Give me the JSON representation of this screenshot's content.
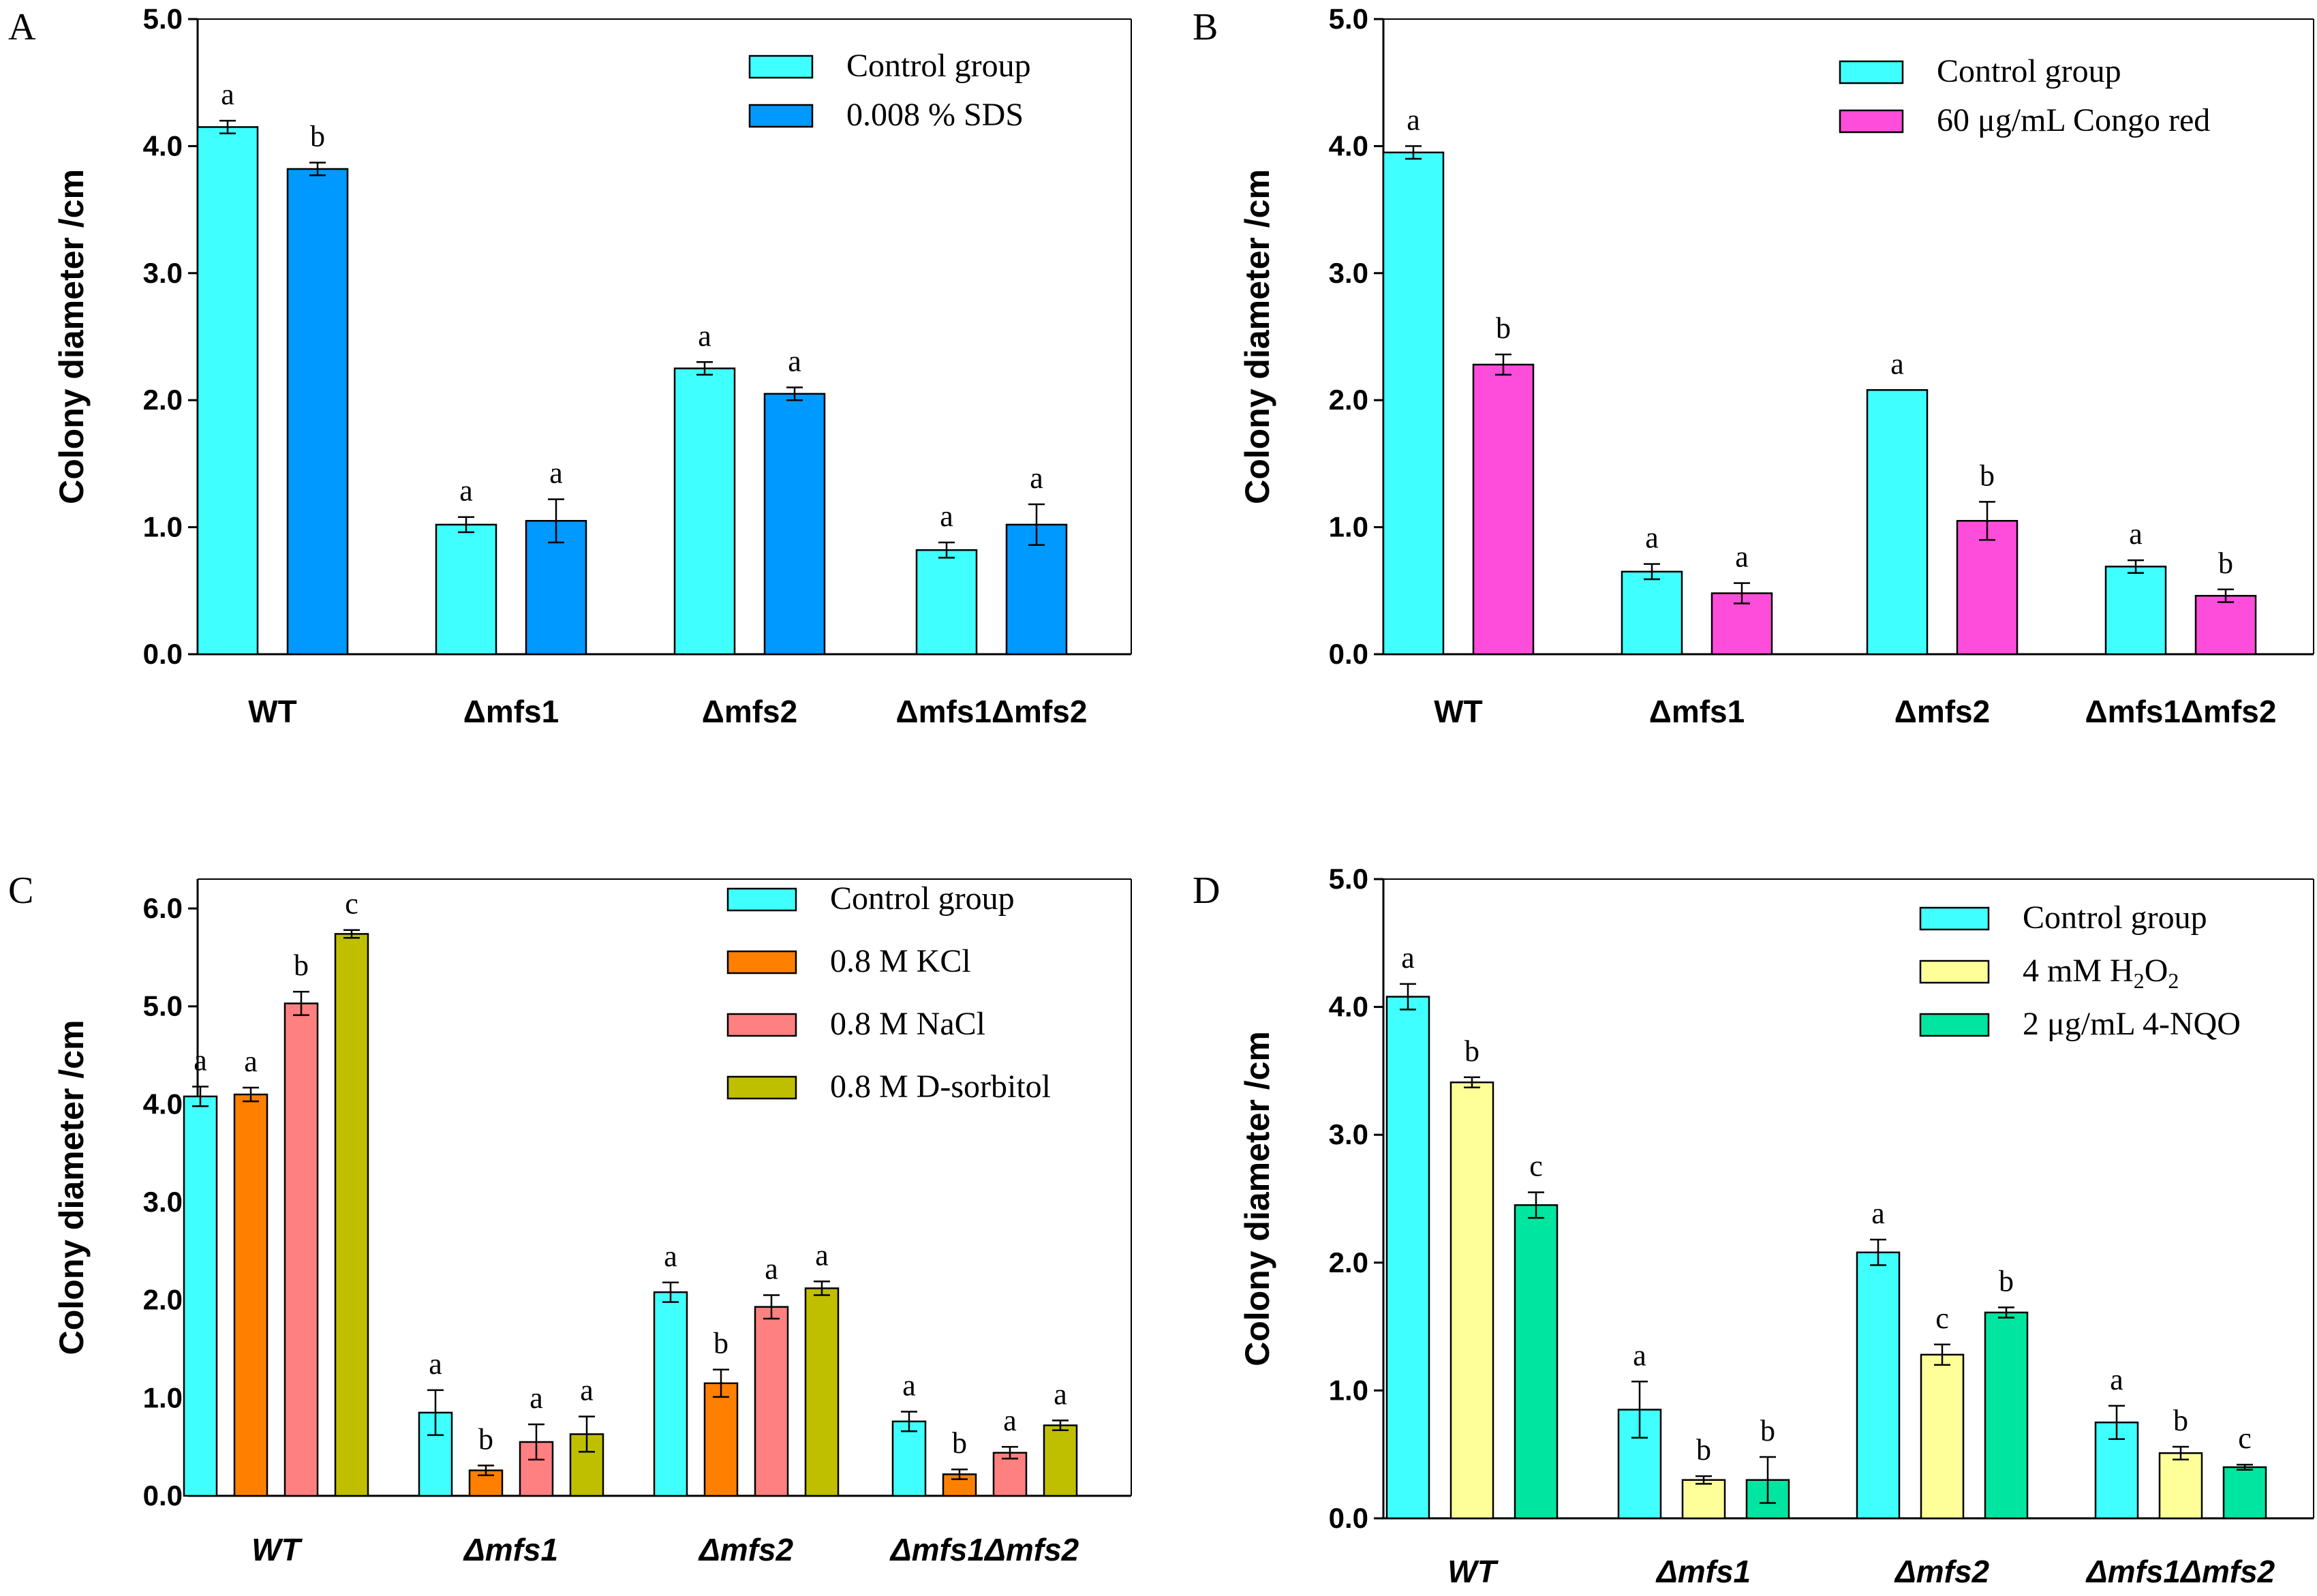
{
  "chart_data": [
    {
      "type": "bar",
      "panel": "A",
      "ylabel": "Colony diameter /cm",
      "ylim": [
        0,
        5
      ],
      "yticks": [
        "0.0",
        "1.0",
        "2.0",
        "3.0",
        "4.0",
        "5.0"
      ],
      "categories": [
        "WT",
        "Δmfs1",
        "Δmfs2",
        "Δmfs1Δmfs2"
      ],
      "category_italic": false,
      "series": [
        {
          "name": "Control group",
          "color": "#40FFFF",
          "values": [
            4.15,
            1.02,
            2.25,
            0.82
          ],
          "errors": [
            0.05,
            0.06,
            0.05,
            0.06
          ],
          "letters": [
            "a",
            "a",
            "a",
            "a"
          ]
        },
        {
          "name": "0.008 % SDS",
          "color": "#0099FF",
          "values": [
            3.82,
            1.05,
            2.05,
            1.02
          ],
          "errors": [
            0.05,
            0.17,
            0.05,
            0.16
          ],
          "letters": [
            "b",
            "a",
            "a",
            "a"
          ]
        }
      ]
    },
    {
      "type": "bar",
      "panel": "B",
      "ylabel": "Colony diameter /cm",
      "ylim": [
        0,
        5
      ],
      "yticks": [
        "0.0",
        "1.0",
        "2.0",
        "3.0",
        "4.0",
        "5.0"
      ],
      "categories": [
        "WT",
        "Δmfs1",
        "Δmfs2",
        "Δmfs1Δmfs2"
      ],
      "category_italic": false,
      "series": [
        {
          "name": "Control group",
          "color": "#40FFFF",
          "values": [
            3.95,
            0.65,
            2.08,
            0.69
          ],
          "errors": [
            0.05,
            0.06,
            0.0,
            0.05
          ],
          "letters": [
            "a",
            "a",
            "a",
            "a"
          ]
        },
        {
          "name": "60 μg/mL Congo red",
          "color": "#FF4DDB",
          "values": [
            2.28,
            0.48,
            1.05,
            0.46
          ],
          "errors": [
            0.08,
            0.08,
            0.15,
            0.05
          ],
          "letters": [
            "b",
            "a",
            "b",
            "b"
          ]
        }
      ]
    },
    {
      "type": "bar",
      "panel": "C",
      "ylabel": "Colony diameter /cm",
      "ylim": [
        0,
        6.3
      ],
      "yticks": [
        "0.0",
        "1.0",
        "2.0",
        "3.0",
        "4.0",
        "5.0",
        "6.0"
      ],
      "categories": [
        "WT",
        "Δmfs1",
        "Δmfs2",
        "Δmfs1Δmfs2"
      ],
      "category_italic": true,
      "series": [
        {
          "name": "Control group",
          "color": "#40FFFF",
          "values": [
            4.08,
            0.85,
            2.08,
            0.76
          ],
          "errors": [
            0.1,
            0.23,
            0.1,
            0.1
          ],
          "letters": [
            "a",
            "a",
            "a",
            "a"
          ]
        },
        {
          "name": "0.8 M KCl",
          "color": "#FF8000",
          "values": [
            4.1,
            0.26,
            1.15,
            0.22
          ],
          "errors": [
            0.07,
            0.05,
            0.14,
            0.05
          ],
          "letters": [
            "a",
            "b",
            "b",
            "b"
          ]
        },
        {
          "name": "0.8 M NaCl",
          "color": "#FF8080",
          "values": [
            5.03,
            0.55,
            1.93,
            0.44
          ],
          "errors": [
            0.12,
            0.18,
            0.12,
            0.06
          ],
          "letters": [
            "b",
            "a",
            "a",
            "a"
          ]
        },
        {
          "name": "0.8 M D-sorbitol",
          "color": "#BFBF00",
          "values": [
            5.74,
            0.63,
            2.12,
            0.72
          ],
          "errors": [
            0.04,
            0.18,
            0.07,
            0.05
          ],
          "letters": [
            "c",
            "a",
            "a",
            "a"
          ]
        }
      ]
    },
    {
      "type": "bar",
      "panel": "D",
      "ylabel": "Colony diameter /cm",
      "ylim": [
        0,
        5
      ],
      "yticks": [
        "0.0",
        "1.0",
        "2.0",
        "3.0",
        "4.0",
        "5.0"
      ],
      "categories": [
        "WT",
        "Δmfs1",
        "Δmfs2",
        "Δmfs1Δmfs2"
      ],
      "category_italic": true,
      "series": [
        {
          "name": "Control group",
          "color": "#40FFFF",
          "values": [
            4.08,
            0.85,
            2.08,
            0.75
          ],
          "errors": [
            0.1,
            0.22,
            0.1,
            0.13
          ],
          "letters": [
            "a",
            "a",
            "a",
            "a"
          ]
        },
        {
          "name": "4 mM H2O2",
          "name_main": "4 mM H",
          "name_sub1": "2",
          "name_mid": "O",
          "name_sub2": "2",
          "color": "#FFFF99",
          "values": [
            3.41,
            0.3,
            1.28,
            0.51
          ],
          "errors": [
            0.04,
            0.03,
            0.08,
            0.05
          ],
          "letters": [
            "b",
            "b",
            "c",
            "b"
          ]
        },
        {
          "name": "2 μg/mL 4-NQO",
          "color": "#00E6A0",
          "values": [
            2.45,
            0.3,
            1.61,
            0.4
          ],
          "errors": [
            0.1,
            0.18,
            0.04,
            0.02
          ],
          "letters": [
            "c",
            "b",
            "b",
            "c"
          ]
        }
      ]
    }
  ],
  "panel_labels": [
    "A",
    "B",
    "C",
    "D"
  ]
}
